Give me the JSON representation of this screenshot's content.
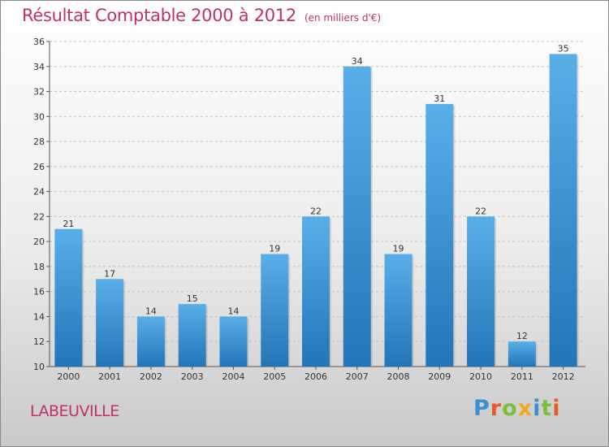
{
  "chart_data": {
    "type": "bar",
    "title": "Résultat Comptable 2000 à 2012",
    "subtitle": "(en milliers d'€)",
    "categories": [
      "2000",
      "2001",
      "2002",
      "2003",
      "2004",
      "2005",
      "2006",
      "2007",
      "2008",
      "2009",
      "2010",
      "2011",
      "2012"
    ],
    "values": [
      21,
      17,
      14,
      15,
      14,
      19,
      22,
      34,
      19,
      31,
      22,
      12,
      35
    ],
    "ylim": [
      10,
      36
    ],
    "yticks": [
      10,
      12,
      14,
      16,
      18,
      20,
      22,
      24,
      26,
      28,
      30,
      32,
      34,
      36
    ],
    "xlabel": "",
    "ylabel": "",
    "grid": "horizontal dashed",
    "colors": {
      "bar_top": "#5aaee8",
      "bar_bottom": "#2275b8",
      "title": "#c0306a"
    }
  },
  "footer": {
    "town": "LABEUVILLE",
    "logo": "Proxiti",
    "logo_letters": [
      {
        "char": "P",
        "color": "#3a8fd0"
      },
      {
        "char": "r",
        "color": "#e85a2a"
      },
      {
        "char": "o",
        "color": "#7bbf3a"
      },
      {
        "char": "x",
        "color": "#f0a81c"
      },
      {
        "char": "i",
        "color": "#3a8fd0"
      },
      {
        "char": "t",
        "color": "#7bbf3a"
      },
      {
        "char": "i",
        "color": "#e85a2a"
      }
    ]
  }
}
